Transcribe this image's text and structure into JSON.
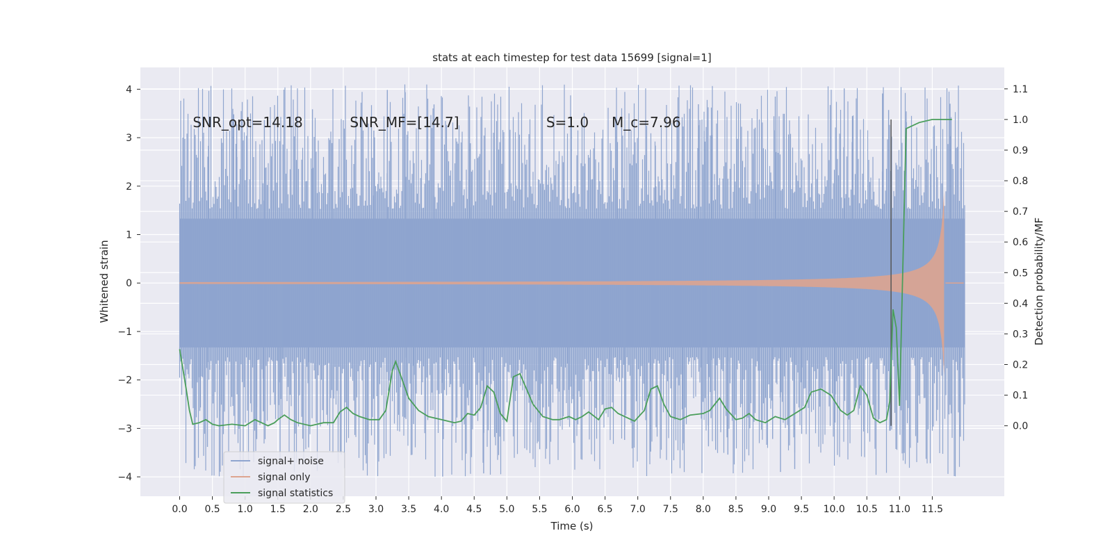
{
  "chart_data": {
    "type": "line",
    "title": "stats at each timestep for test data 15699 [signal=1]",
    "xlabel": "Time (s)",
    "ylabel": "Whitened strain",
    "y2label": "Detection probability/MF",
    "xlim": [
      -0.6,
      12.6
    ],
    "ylim": [
      -4.4,
      4.45
    ],
    "y2lim": [
      -0.23,
      1.17
    ],
    "x_ticks": [
      0.0,
      0.5,
      1.0,
      1.5,
      2.0,
      2.5,
      3.0,
      3.5,
      4.0,
      4.5,
      5.0,
      5.5,
      6.0,
      6.5,
      7.0,
      7.5,
      8.0,
      8.5,
      9.0,
      9.5,
      10.0,
      10.5,
      11.0,
      11.5
    ],
    "x_tick_labels": [
      "0.0",
      "0.5",
      "1.0",
      "1.5",
      "2.0",
      "2.5",
      "3.0",
      "3.5",
      "4.0",
      "4.5",
      "5.0",
      "5.5",
      "6.0",
      "6.5",
      "7.0",
      "7.5",
      "8.0",
      "8.5",
      "9.0",
      "9.5",
      "10.0",
      "10.5",
      "11.0",
      "11.5"
    ],
    "y_ticks": [
      4,
      3,
      2,
      1,
      0,
      -1,
      -2,
      -3,
      -4
    ],
    "y_tick_labels": [
      "4",
      "3",
      "2",
      "1",
      "0",
      "−1",
      "−2",
      "−3",
      "−4"
    ],
    "y2_ticks": [
      1.1,
      1.0,
      0.9,
      0.8,
      0.7,
      0.6,
      0.5,
      0.4,
      0.3,
      0.2,
      0.1,
      0.0
    ],
    "y2_tick_labels": [
      "1.1",
      "1.0",
      "0.9",
      "0.8",
      "0.7",
      "0.6",
      "0.5",
      "0.4",
      "0.3",
      "0.2",
      "0.1",
      "0.0"
    ],
    "annotations": [
      {
        "text": "SNR_opt=14.18",
        "x": 0.2,
        "y": 3.32
      },
      {
        "text": "SNR_MF=[14.7]",
        "x": 2.6,
        "y": 3.32
      },
      {
        "text": "S=1.0",
        "x": 5.6,
        "y": 3.32
      },
      {
        "text": "M_c=7.96",
        "x": 6.6,
        "y": 3.32
      }
    ],
    "vline": {
      "x": 10.87,
      "y2_range": [
        0.0,
        1.0
      ],
      "color": "#555555"
    },
    "legend": {
      "placement": "lower-left"
    },
    "grid": true,
    "series": [
      {
        "name": "signal+ noise",
        "color": "#8FA5CF",
        "kind": "noise",
        "x_range": [
          0.0,
          12.0
        ],
        "core_amplitude": 1.33,
        "peak_max": 4.1,
        "trough_min": -4.0
      },
      {
        "name": "signal only",
        "color": "#DDA48F",
        "kind": "chirp",
        "x_range": [
          0.0,
          11.68
        ],
        "amplitude_end": 1.9
      },
      {
        "name": "signal statistics",
        "color": "#4A9E5A",
        "axis": "right",
        "x": [
          0.0,
          0.1,
          0.15,
          0.2,
          0.3,
          0.4,
          0.5,
          0.6,
          0.8,
          1.0,
          1.15,
          1.25,
          1.35,
          1.45,
          1.5,
          1.6,
          1.7,
          1.8,
          2.0,
          2.2,
          2.35,
          2.45,
          2.55,
          2.65,
          2.75,
          2.9,
          3.05,
          3.15,
          3.25,
          3.3,
          3.4,
          3.5,
          3.65,
          3.8,
          4.0,
          4.1,
          4.2,
          4.3,
          4.4,
          4.5,
          4.6,
          4.7,
          4.8,
          4.9,
          5.0,
          5.1,
          5.2,
          5.3,
          5.4,
          5.55,
          5.7,
          5.8,
          5.95,
          6.05,
          6.15,
          6.25,
          6.4,
          6.5,
          6.6,
          6.7,
          6.85,
          6.95,
          7.1,
          7.2,
          7.3,
          7.4,
          7.5,
          7.65,
          7.8,
          8.0,
          8.1,
          8.25,
          8.35,
          8.5,
          8.6,
          8.7,
          8.8,
          8.95,
          9.1,
          9.25,
          9.4,
          9.55,
          9.65,
          9.8,
          9.95,
          10.1,
          10.2,
          10.3,
          10.4,
          10.5,
          10.6,
          10.7,
          10.8,
          10.85,
          10.9,
          10.95,
          11.0,
          11.1,
          11.3,
          11.5,
          11.7,
          11.8
        ],
        "values": [
          0.25,
          0.12,
          0.05,
          0.005,
          0.01,
          0.02,
          0.005,
          0.0,
          0.005,
          0.0,
          0.02,
          0.01,
          0.0,
          0.01,
          0.02,
          0.035,
          0.02,
          0.01,
          0.0,
          0.01,
          0.01,
          0.045,
          0.06,
          0.04,
          0.03,
          0.02,
          0.02,
          0.05,
          0.18,
          0.21,
          0.15,
          0.09,
          0.05,
          0.03,
          0.02,
          0.015,
          0.01,
          0.015,
          0.04,
          0.035,
          0.06,
          0.13,
          0.11,
          0.04,
          0.015,
          0.16,
          0.17,
          0.12,
          0.07,
          0.03,
          0.02,
          0.02,
          0.03,
          0.02,
          0.03,
          0.045,
          0.02,
          0.055,
          0.06,
          0.04,
          0.025,
          0.015,
          0.05,
          0.12,
          0.13,
          0.07,
          0.03,
          0.02,
          0.035,
          0.04,
          0.05,
          0.09,
          0.055,
          0.02,
          0.025,
          0.04,
          0.02,
          0.01,
          0.03,
          0.02,
          0.04,
          0.06,
          0.11,
          0.12,
          0.1,
          0.05,
          0.035,
          0.05,
          0.13,
          0.1,
          0.025,
          0.01,
          0.02,
          0.08,
          0.38,
          0.32,
          0.065,
          0.97,
          0.99,
          1.0,
          1.0,
          1.0
        ]
      }
    ]
  }
}
